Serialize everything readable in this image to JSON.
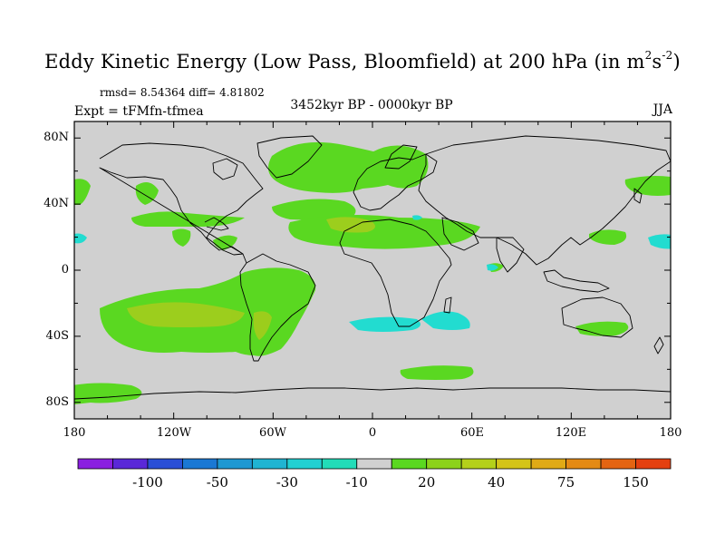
{
  "title": {
    "text": "Eddy Kinetic Energy (Low Pass, Bloomfield) at 200 hPa (in m",
    "sup1": "2",
    "mid": "s",
    "sup2": "-2",
    "end": ")"
  },
  "stats": "rmsd= 8.54364 diff= 4.81802",
  "expt": "Expt = tFMfn-tfmea",
  "period": "3452kyr BP - 0000kyr BP",
  "season": "JJA",
  "lat_labels": [
    "80N",
    "40N",
    "0",
    "40S",
    "80S"
  ],
  "lon_labels": [
    "180",
    "120W",
    "60W",
    "0",
    "60E",
    "120E",
    "180"
  ],
  "colorbar": {
    "colors": [
      "#8a1fe0",
      "#5a28d8",
      "#2a4fd6",
      "#1a78d4",
      "#1e98d2",
      "#20b4d2",
      "#22d0d2",
      "#22dcb8",
      "#d0d0d0",
      "#5ad821",
      "#8cd21a",
      "#b4d01a",
      "#d4c418",
      "#e0aa16",
      "#e48a14",
      "#e46412",
      "#e44010"
    ],
    "labels": [
      {
        "text": "-100",
        "boundary": 2
      },
      {
        "text": "-50",
        "boundary": 4
      },
      {
        "text": "-30",
        "boundary": 6
      },
      {
        "text": "-10",
        "boundary": 8
      },
      {
        "text": "20",
        "boundary": 10
      },
      {
        "text": "40",
        "boundary": 12
      },
      {
        "text": "75",
        "boundary": 14
      },
      {
        "text": "150",
        "boundary": 16
      }
    ]
  },
  "map": {
    "background_color": "#d0d0d0",
    "positive_color": "#5ad821",
    "strong_positive_color": "#a8cc1c",
    "negative_color": "#22dcd0"
  }
}
